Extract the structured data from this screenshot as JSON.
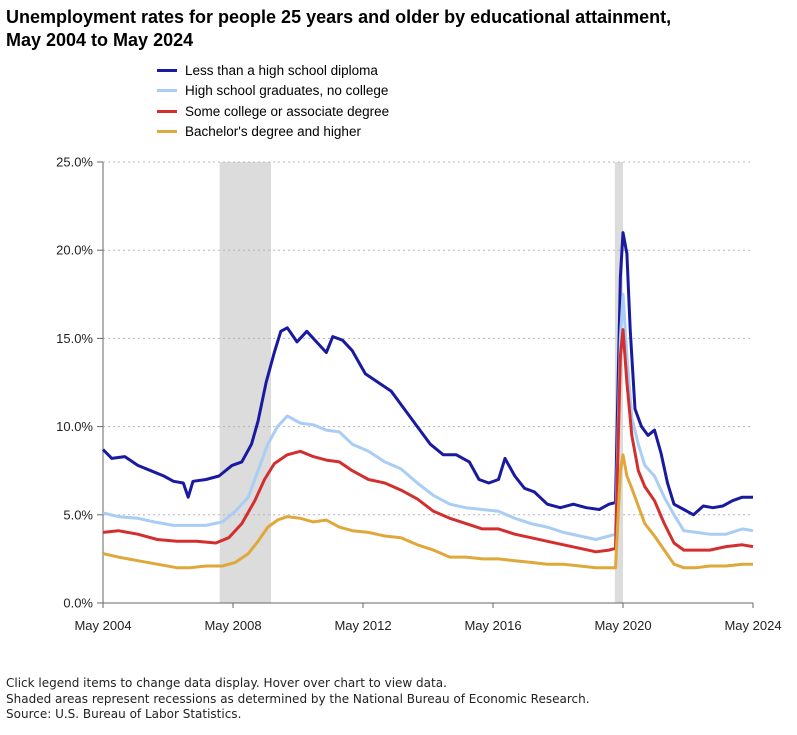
{
  "chart_data": {
    "type": "line",
    "title": "Unemployment rates for people 25 years and older by educational attainment, May 2004 to May 2024",
    "xlabel": "",
    "ylabel": "",
    "x_ticks": [
      "May 2004",
      "May 2008",
      "May 2012",
      "May 2016",
      "May 2020",
      "May 2024"
    ],
    "y_ticks": [
      "0.0%",
      "5.0%",
      "10.0%",
      "15.0%",
      "20.0%",
      "25.0%"
    ],
    "xlim": [
      2004.33,
      2024.33
    ],
    "ylim": [
      0,
      25
    ],
    "grid": "horizontal dotted",
    "legend_position": "top-left",
    "recessions": [
      {
        "start": 2007.92,
        "end": 2009.5
      },
      {
        "start": 2020.08,
        "end": 2020.33
      }
    ],
    "series": [
      {
        "name": "Less than a high school diploma",
        "color": "#1a1aa0",
        "points": [
          [
            2004.33,
            8.7
          ],
          [
            2004.6,
            8.2
          ],
          [
            2005.0,
            8.3
          ],
          [
            2005.4,
            7.8
          ],
          [
            2005.8,
            7.5
          ],
          [
            2006.2,
            7.2
          ],
          [
            2006.5,
            6.9
          ],
          [
            2006.8,
            6.8
          ],
          [
            2006.95,
            6.0
          ],
          [
            2007.1,
            6.9
          ],
          [
            2007.5,
            7.0
          ],
          [
            2007.9,
            7.2
          ],
          [
            2008.3,
            7.8
          ],
          [
            2008.6,
            8.0
          ],
          [
            2008.9,
            9.0
          ],
          [
            2009.1,
            10.3
          ],
          [
            2009.35,
            12.5
          ],
          [
            2009.6,
            14.2
          ],
          [
            2009.8,
            15.4
          ],
          [
            2010.0,
            15.6
          ],
          [
            2010.3,
            14.8
          ],
          [
            2010.6,
            15.4
          ],
          [
            2010.9,
            14.8
          ],
          [
            2011.2,
            14.2
          ],
          [
            2011.4,
            15.1
          ],
          [
            2011.7,
            14.9
          ],
          [
            2012.0,
            14.3
          ],
          [
            2012.4,
            13.0
          ],
          [
            2012.8,
            12.5
          ],
          [
            2013.2,
            12.0
          ],
          [
            2013.6,
            11.0
          ],
          [
            2014.0,
            10.0
          ],
          [
            2014.4,
            9.0
          ],
          [
            2014.8,
            8.4
          ],
          [
            2015.2,
            8.4
          ],
          [
            2015.6,
            8.0
          ],
          [
            2015.9,
            7.0
          ],
          [
            2016.2,
            6.8
          ],
          [
            2016.5,
            7.0
          ],
          [
            2016.7,
            8.2
          ],
          [
            2017.0,
            7.2
          ],
          [
            2017.3,
            6.5
          ],
          [
            2017.6,
            6.3
          ],
          [
            2018.0,
            5.6
          ],
          [
            2018.4,
            5.4
          ],
          [
            2018.8,
            5.6
          ],
          [
            2019.2,
            5.4
          ],
          [
            2019.6,
            5.3
          ],
          [
            2019.9,
            5.6
          ],
          [
            2020.1,
            5.7
          ],
          [
            2020.25,
            18.5
          ],
          [
            2020.33,
            21.0
          ],
          [
            2020.45,
            19.8
          ],
          [
            2020.55,
            15.5
          ],
          [
            2020.7,
            11.0
          ],
          [
            2020.9,
            10.0
          ],
          [
            2021.1,
            9.5
          ],
          [
            2021.3,
            9.8
          ],
          [
            2021.5,
            8.5
          ],
          [
            2021.7,
            6.8
          ],
          [
            2021.9,
            5.6
          ],
          [
            2022.2,
            5.3
          ],
          [
            2022.5,
            5.0
          ],
          [
            2022.8,
            5.5
          ],
          [
            2023.1,
            5.4
          ],
          [
            2023.4,
            5.5
          ],
          [
            2023.7,
            5.8
          ],
          [
            2024.0,
            6.0
          ],
          [
            2024.33,
            6.0
          ]
        ]
      },
      {
        "name": "High school graduates, no college",
        "color": "#a9cdf5",
        "points": [
          [
            2004.33,
            5.1
          ],
          [
            2004.8,
            4.9
          ],
          [
            2005.4,
            4.8
          ],
          [
            2005.9,
            4.6
          ],
          [
            2006.5,
            4.4
          ],
          [
            2007.0,
            4.4
          ],
          [
            2007.5,
            4.4
          ],
          [
            2008.0,
            4.6
          ],
          [
            2008.4,
            5.2
          ],
          [
            2008.8,
            6.0
          ],
          [
            2009.1,
            7.5
          ],
          [
            2009.4,
            9.0
          ],
          [
            2009.7,
            10.0
          ],
          [
            2010.0,
            10.6
          ],
          [
            2010.4,
            10.2
          ],
          [
            2010.8,
            10.1
          ],
          [
            2011.2,
            9.8
          ],
          [
            2011.6,
            9.7
          ],
          [
            2012.0,
            9.0
          ],
          [
            2012.5,
            8.6
          ],
          [
            2013.0,
            8.0
          ],
          [
            2013.5,
            7.6
          ],
          [
            2014.0,
            6.8
          ],
          [
            2014.5,
            6.1
          ],
          [
            2015.0,
            5.6
          ],
          [
            2015.5,
            5.4
          ],
          [
            2016.0,
            5.3
          ],
          [
            2016.5,
            5.2
          ],
          [
            2017.0,
            4.8
          ],
          [
            2017.5,
            4.5
          ],
          [
            2018.0,
            4.3
          ],
          [
            2018.5,
            4.0
          ],
          [
            2019.0,
            3.8
          ],
          [
            2019.5,
            3.6
          ],
          [
            2019.9,
            3.8
          ],
          [
            2020.1,
            3.9
          ],
          [
            2020.25,
            15.0
          ],
          [
            2020.33,
            17.5
          ],
          [
            2020.45,
            14.0
          ],
          [
            2020.6,
            10.5
          ],
          [
            2020.8,
            9.0
          ],
          [
            2021.0,
            7.8
          ],
          [
            2021.3,
            7.2
          ],
          [
            2021.6,
            6.0
          ],
          [
            2021.9,
            5.0
          ],
          [
            2022.2,
            4.1
          ],
          [
            2022.6,
            4.0
          ],
          [
            2023.0,
            3.9
          ],
          [
            2023.5,
            3.9
          ],
          [
            2024.0,
            4.2
          ],
          [
            2024.33,
            4.1
          ]
        ]
      },
      {
        "name": "Some college or associate degree",
        "color": "#d32f2f",
        "points": [
          [
            2004.33,
            4.0
          ],
          [
            2004.8,
            4.1
          ],
          [
            2005.4,
            3.9
          ],
          [
            2006.0,
            3.6
          ],
          [
            2006.6,
            3.5
          ],
          [
            2007.2,
            3.5
          ],
          [
            2007.8,
            3.4
          ],
          [
            2008.2,
            3.7
          ],
          [
            2008.6,
            4.5
          ],
          [
            2009.0,
            5.8
          ],
          [
            2009.3,
            7.0
          ],
          [
            2009.6,
            7.9
          ],
          [
            2010.0,
            8.4
          ],
          [
            2010.4,
            8.6
          ],
          [
            2010.8,
            8.3
          ],
          [
            2011.2,
            8.1
          ],
          [
            2011.6,
            8.0
          ],
          [
            2012.0,
            7.5
          ],
          [
            2012.5,
            7.0
          ],
          [
            2013.0,
            6.8
          ],
          [
            2013.5,
            6.4
          ],
          [
            2014.0,
            5.9
          ],
          [
            2014.5,
            5.2
          ],
          [
            2015.0,
            4.8
          ],
          [
            2015.5,
            4.5
          ],
          [
            2016.0,
            4.2
          ],
          [
            2016.5,
            4.2
          ],
          [
            2017.0,
            3.9
          ],
          [
            2017.5,
            3.7
          ],
          [
            2018.0,
            3.5
          ],
          [
            2018.5,
            3.3
          ],
          [
            2019.0,
            3.1
          ],
          [
            2019.5,
            2.9
          ],
          [
            2019.9,
            3.0
          ],
          [
            2020.1,
            3.1
          ],
          [
            2020.25,
            14.0
          ],
          [
            2020.33,
            15.5
          ],
          [
            2020.45,
            12.5
          ],
          [
            2020.6,
            9.5
          ],
          [
            2020.8,
            7.5
          ],
          [
            2021.0,
            6.6
          ],
          [
            2021.3,
            5.8
          ],
          [
            2021.6,
            4.5
          ],
          [
            2021.9,
            3.4
          ],
          [
            2022.2,
            3.0
          ],
          [
            2022.6,
            3.0
          ],
          [
            2023.0,
            3.0
          ],
          [
            2023.5,
            3.2
          ],
          [
            2024.0,
            3.3
          ],
          [
            2024.33,
            3.2
          ]
        ]
      },
      {
        "name": "Bachelor's degree and higher",
        "color": "#e0a83a",
        "points": [
          [
            2004.33,
            2.8
          ],
          [
            2004.8,
            2.6
          ],
          [
            2005.4,
            2.4
          ],
          [
            2006.0,
            2.2
          ],
          [
            2006.6,
            2.0
          ],
          [
            2007.0,
            2.0
          ],
          [
            2007.5,
            2.1
          ],
          [
            2008.0,
            2.1
          ],
          [
            2008.4,
            2.3
          ],
          [
            2008.8,
            2.8
          ],
          [
            2009.1,
            3.5
          ],
          [
            2009.4,
            4.3
          ],
          [
            2009.7,
            4.7
          ],
          [
            2010.0,
            4.9
          ],
          [
            2010.4,
            4.8
          ],
          [
            2010.8,
            4.6
          ],
          [
            2011.2,
            4.7
          ],
          [
            2011.6,
            4.3
          ],
          [
            2012.0,
            4.1
          ],
          [
            2012.5,
            4.0
          ],
          [
            2013.0,
            3.8
          ],
          [
            2013.5,
            3.7
          ],
          [
            2014.0,
            3.3
          ],
          [
            2014.5,
            3.0
          ],
          [
            2015.0,
            2.6
          ],
          [
            2015.5,
            2.6
          ],
          [
            2016.0,
            2.5
          ],
          [
            2016.5,
            2.5
          ],
          [
            2017.0,
            2.4
          ],
          [
            2017.5,
            2.3
          ],
          [
            2018.0,
            2.2
          ],
          [
            2018.5,
            2.2
          ],
          [
            2019.0,
            2.1
          ],
          [
            2019.5,
            2.0
          ],
          [
            2019.9,
            2.0
          ],
          [
            2020.1,
            2.0
          ],
          [
            2020.25,
            7.5
          ],
          [
            2020.33,
            8.4
          ],
          [
            2020.45,
            7.2
          ],
          [
            2020.6,
            6.5
          ],
          [
            2020.8,
            5.5
          ],
          [
            2021.0,
            4.5
          ],
          [
            2021.3,
            3.8
          ],
          [
            2021.6,
            3.0
          ],
          [
            2021.9,
            2.2
          ],
          [
            2022.2,
            2.0
          ],
          [
            2022.6,
            2.0
          ],
          [
            2023.0,
            2.1
          ],
          [
            2023.5,
            2.1
          ],
          [
            2024.0,
            2.2
          ],
          [
            2024.33,
            2.2
          ]
        ]
      }
    ]
  },
  "footer": {
    "line1": "Click legend items to change data display. Hover over chart to view data.",
    "line2": "Shaded areas represent recessions as determined by the National Bureau of Economic Research.",
    "line3": "Source: U.S. Bureau of Labor Statistics."
  }
}
